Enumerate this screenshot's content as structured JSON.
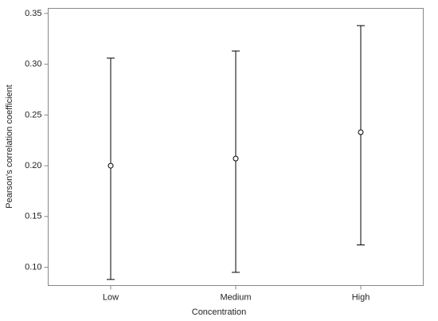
{
  "chart_data": {
    "type": "errorbar",
    "x_label": "Concentration",
    "y_label": "Pearson's correlation coefficient",
    "categories": [
      "Low",
      "Medium",
      "High"
    ],
    "series": [
      {
        "values": [
          0.2,
          0.207,
          0.233
        ],
        "lower": [
          0.088,
          0.095,
          0.122
        ],
        "upper": [
          0.306,
          0.313,
          0.338
        ],
        "color": "#000000"
      }
    ],
    "ylim": [
      0.082,
      0.355
    ],
    "yticks": [
      {
        "value": 0.1,
        "label": "0.10"
      },
      0.15,
      {
        "value": 0.2,
        "label": "0.20"
      },
      0.25,
      {
        "value": 0.3,
        "label": "0.30"
      },
      0.35
    ],
    "grid": false
  }
}
